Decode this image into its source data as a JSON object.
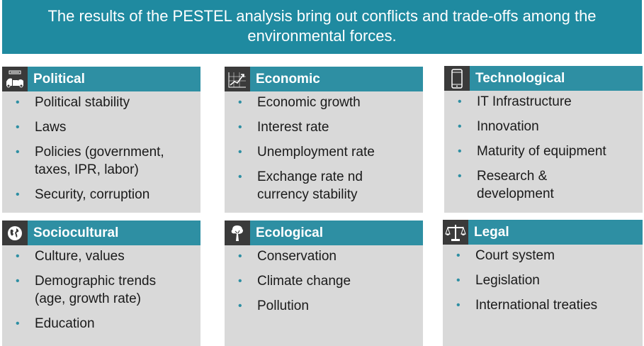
{
  "banner": {
    "line1": "The results of the PESTEL analysis bring out conflicts and trade-offs among the",
    "line2": "environmental forces."
  },
  "boxes": [
    {
      "title": "Political",
      "icon": "government-icon",
      "items": [
        "Political stability",
        "Laws",
        "Policies (government, taxes, IPR, labor)",
        "Security, corruption"
      ]
    },
    {
      "title": "Economic",
      "icon": "growth-chart-icon",
      "items": [
        "Economic growth",
        "Interest rate",
        "Unemployment rate",
        "Exchange rate nd currency stability"
      ]
    },
    {
      "title": "Technological",
      "icon": "smartphone-icon",
      "items": [
        "IT Infrastructure",
        "Innovation",
        "Maturity of equipment",
        "Research & development"
      ]
    },
    {
      "title": "Sociocultural",
      "icon": "globe-icon",
      "items": [
        "Culture, values",
        "Demographic trends (age, growth rate)",
        "Education"
      ]
    },
    {
      "title": "Ecological",
      "icon": "tree-icon",
      "items": [
        "Conservation",
        "Climate change",
        "Pollution"
      ]
    },
    {
      "title": "Legal",
      "icon": "scales-icon",
      "items": [
        "Court system",
        "Legislation",
        "International treaties"
      ]
    }
  ],
  "colors": {
    "banner": "#1f8aa0",
    "header": "#2e8fa3",
    "box_bg": "#d9d9d9",
    "icon_bg": "#3a3a3a"
  }
}
